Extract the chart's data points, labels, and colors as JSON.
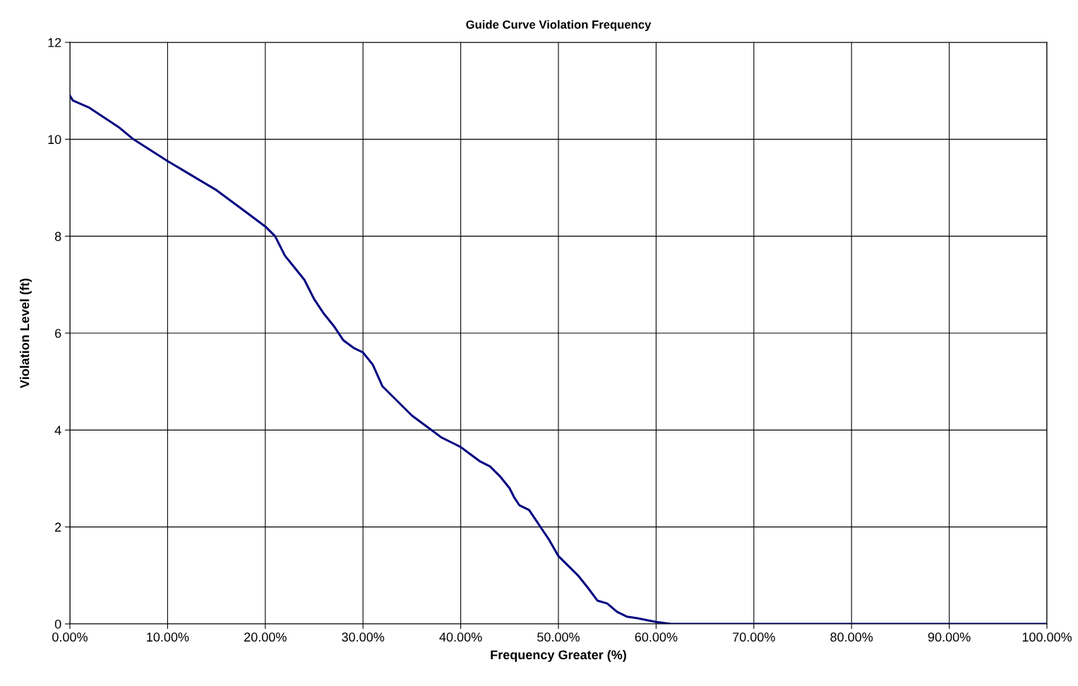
{
  "chart_data": {
    "type": "line",
    "title": "Guide Curve Violation Frequency",
    "xlabel": "Frequency Greater (%)",
    "ylabel": "Violation Level (ft)",
    "series": [
      {
        "color": "#000080",
        "x": [
          0,
          0.3,
          2,
          5,
          6.5,
          10,
          15,
          18,
          20,
          21,
          22,
          23,
          24,
          25,
          26,
          27,
          28,
          29,
          30,
          31,
          32,
          33,
          34,
          35,
          36,
          37,
          38,
          39,
          40,
          41,
          42,
          43,
          44,
          45,
          45.5,
          46,
          47,
          48,
          49,
          50,
          51,
          52,
          53,
          54,
          55,
          56,
          57,
          58,
          59,
          60,
          61.5,
          100
        ],
        "values": [
          10.9,
          10.8,
          10.65,
          10.25,
          10.0,
          9.55,
          8.95,
          8.5,
          8.2,
          8.0,
          7.6,
          7.35,
          7.1,
          6.7,
          6.4,
          6.15,
          5.85,
          5.7,
          5.6,
          5.35,
          4.9,
          4.7,
          4.5,
          4.3,
          4.15,
          4.0,
          3.85,
          3.75,
          3.65,
          3.5,
          3.35,
          3.25,
          3.05,
          2.8,
          2.6,
          2.45,
          2.35,
          2.05,
          1.75,
          1.4,
          1.2,
          1.0,
          0.75,
          0.48,
          0.42,
          0.25,
          0.15,
          0.12,
          0.08,
          0.04,
          0.0,
          0.0
        ]
      }
    ],
    "xlim": [
      0,
      100
    ],
    "ylim": [
      0,
      12
    ],
    "xticks": [
      {
        "value": 0,
        "label": "0.00%"
      },
      {
        "value": 10,
        "label": "10.00%"
      },
      {
        "value": 20,
        "label": "20.00%"
      },
      {
        "value": 30,
        "label": "30.00%"
      },
      {
        "value": 40,
        "label": "40.00%"
      },
      {
        "value": 50,
        "label": "50.00%"
      },
      {
        "value": 60,
        "label": "60.00%"
      },
      {
        "value": 70,
        "label": "70.00%"
      },
      {
        "value": 80,
        "label": "80.00%"
      },
      {
        "value": 90,
        "label": "90.00%"
      },
      {
        "value": 100,
        "label": "100.00%"
      }
    ],
    "yticks": [
      0,
      2,
      4,
      6,
      8,
      10,
      12
    ],
    "grid": true,
    "marker": "none",
    "line_style": "solid",
    "legend": false
  }
}
